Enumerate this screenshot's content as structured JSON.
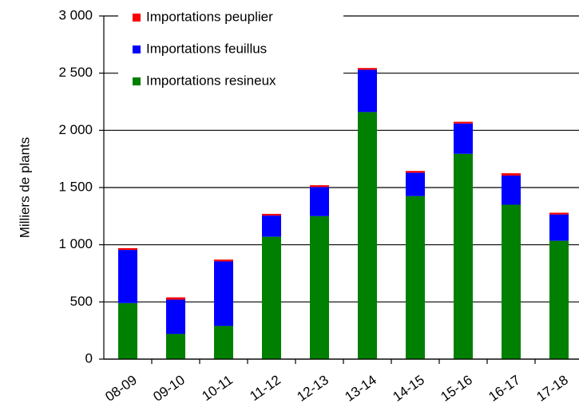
{
  "chart_data": {
    "type": "stacked_bar",
    "y_label": "Milliers de plants",
    "categories": [
      "08-09",
      "09-10",
      "10-11",
      "11-12",
      "12-13",
      "13-14",
      "14-15",
      "15-16",
      "16-17",
      "17-18"
    ],
    "series": [
      {
        "name": "Importations resineux",
        "color": "#008000",
        "values": [
          490,
          220,
          290,
          1070,
          1250,
          2160,
          1425,
          1795,
          1350,
          1035
        ]
      },
      {
        "name": "Importations feuillus",
        "color": "#0000ff",
        "values": [
          465,
          300,
          565,
          185,
          255,
          370,
          205,
          265,
          255,
          230
        ]
      },
      {
        "name": "Importations peuplier",
        "color": "#ff0000",
        "values": [
          15,
          20,
          15,
          15,
          15,
          15,
          15,
          15,
          20,
          15
        ]
      }
    ],
    "ylim": [
      0,
      3000
    ],
    "yticks": [
      0,
      500,
      {
        "value": 1000,
        "label": "1 000"
      },
      {
        "value": 1500,
        "label": "1 500"
      },
      {
        "value": 2000,
        "label": "2 000"
      },
      {
        "value": 2500,
        "label": "2 500"
      },
      {
        "value": 3000,
        "label": "3 000"
      }
    ],
    "grid": true
  }
}
